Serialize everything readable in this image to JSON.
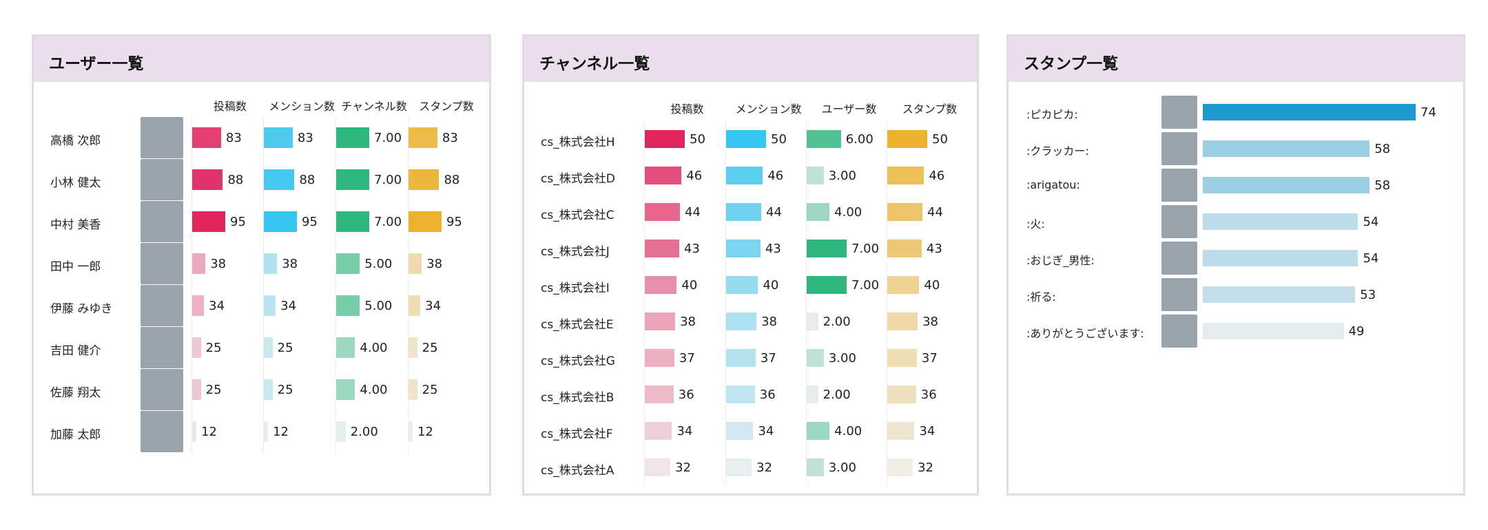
{
  "panels": {
    "users": {
      "title": "ユーザー一覧",
      "rows": [
        "高橋 次郎",
        "小林 健太",
        "中村 美香",
        "田中 一郎",
        "伊藤 みゆき",
        "吉田 健介",
        "佐藤 翔太",
        "加藤 太郎"
      ],
      "columns": [
        {
          "header": "投稿数",
          "color": "#e0245e",
          "values": [
            83,
            88,
            95,
            38,
            34,
            25,
            25,
            12
          ]
        },
        {
          "header": "メンション数",
          "color": "#36c5f0",
          "values": [
            83,
            88,
            95,
            38,
            34,
            25,
            25,
            12
          ]
        },
        {
          "header": "チャンネル数",
          "color": "#2eb67d",
          "values": [
            7,
            7,
            7,
            5,
            5,
            4,
            4,
            2
          ],
          "value_labels": [
            "7.00",
            "7.00",
            "7.00",
            "5.00",
            "5.00",
            "4.00",
            "4.00",
            "2.00"
          ]
        },
        {
          "header": "スタンプ数",
          "color": "#ecb22e",
          "values": [
            83,
            88,
            95,
            38,
            34,
            25,
            25,
            12
          ]
        }
      ]
    },
    "channels": {
      "title": "チャンネル一覧",
      "rows": [
        "cs_株式会社H",
        "cs_株式会社D",
        "cs_株式会社C",
        "cs_株式会社J",
        "cs_株式会社I",
        "cs_株式会社E",
        "cs_株式会社G",
        "cs_株式会社B",
        "cs_株式会社F",
        "cs_株式会社A"
      ],
      "columns": [
        {
          "header": "投稿数",
          "color": "#e0245e",
          "values": [
            50,
            46,
            44,
            43,
            40,
            38,
            37,
            36,
            34,
            32
          ]
        },
        {
          "header": "メンション数",
          "color": "#36c5f0",
          "values": [
            50,
            46,
            44,
            43,
            40,
            38,
            37,
            36,
            34,
            32
          ]
        },
        {
          "header": "ユーザー数",
          "color": "#2eb67d",
          "values": [
            6,
            3,
            4,
            7,
            7,
            2,
            3,
            2,
            4,
            3
          ],
          "value_labels": [
            "6.00",
            "3.00",
            "4.00",
            "7.00",
            "7.00",
            "2.00",
            "3.00",
            "2.00",
            "4.00",
            "3.00"
          ]
        },
        {
          "header": "スタンプ数",
          "color": "#ecb22e",
          "values": [
            50,
            46,
            44,
            43,
            40,
            38,
            37,
            36,
            34,
            32
          ]
        }
      ]
    },
    "stamps": {
      "title": "スタンプ一覧",
      "rows": [
        ":ピカピカ:",
        ":クラッカー:",
        ":arigatou:",
        ":火:",
        ":おじぎ_男性:",
        ":祈る:",
        ":ありがとうございます:"
      ],
      "columns": [
        {
          "color": "#1d9bd1",
          "values": [
            74,
            58,
            58,
            54,
            54,
            53,
            49
          ]
        }
      ]
    }
  }
}
